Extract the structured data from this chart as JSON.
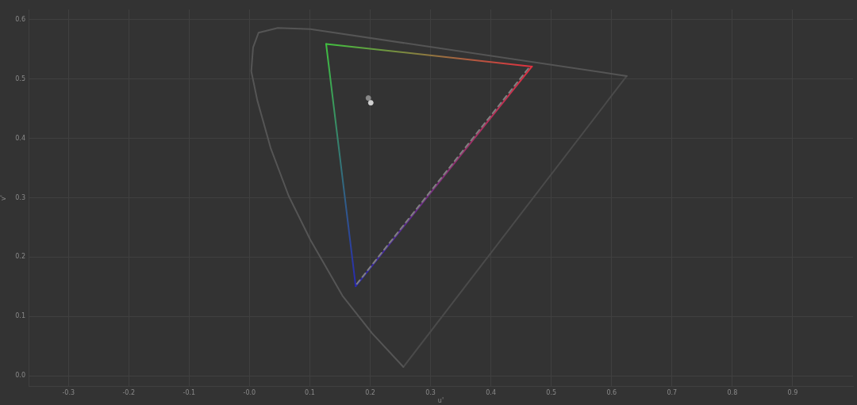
{
  "chart_data": {
    "type": "line",
    "xlabel": "u'",
    "ylabel": "v'",
    "xlim": [
      -0.366,
      1.0
    ],
    "ylim": [
      -0.017,
      0.617
    ],
    "xticks": [
      -0.3,
      -0.2,
      -0.1,
      {
        "value": 0,
        "label": "-0.0"
      },
      0.1,
      0.2,
      0.3,
      0.4,
      0.5,
      0.6,
      0.7,
      0.8,
      0.9
    ],
    "yticks": [
      {
        "value": 0,
        "label": "0.0"
      },
      0.1,
      0.2,
      0.3,
      0.4,
      0.5,
      0.6
    ],
    "grid": true,
    "legend": false,
    "series": [
      {
        "type": "line",
        "color": "#555555",
        "x": [
          0.255,
          0.203,
          0.154,
          0.101,
          0.065,
          0.035,
          0.013,
          0.003,
          0.006,
          0.015,
          0.047,
          0.101,
          0.625
        ],
        "values": [
          0.015,
          0.072,
          0.135,
          0.229,
          0.303,
          0.384,
          0.464,
          0.513,
          0.553,
          0.578,
          0.586,
          0.584,
          0.505
        ]
      },
      {
        "type": "line",
        "color": "#4a4a4a",
        "x": [
          0.255,
          0.625
        ],
        "values": [
          0.015,
          0.505
        ]
      },
      {
        "type": "line",
        "line_style": "dashed",
        "color": "#808080",
        "x": [
          0.178,
          0.463
        ],
        "values": [
          0.155,
          0.519
        ]
      },
      {
        "type": "line",
        "colors": [
          "#40c040",
          "#e03040"
        ],
        "x": [
          0.127,
          0.468
        ],
        "values": [
          0.559,
          0.521
        ]
      },
      {
        "type": "line",
        "colors": [
          "#2828b0",
          "#e03040"
        ],
        "x": [
          0.176,
          0.468
        ],
        "values": [
          0.151,
          0.521
        ]
      },
      {
        "type": "line",
        "colors": [
          "#40c040",
          "#2828b0"
        ],
        "x": [
          0.127,
          0.176
        ],
        "values": [
          0.559,
          0.151
        ]
      },
      {
        "type": "scatter",
        "marker": "circle",
        "colors": [
          "#888888",
          "#d0d0d0"
        ],
        "x": [
          0.197,
          0.201
        ],
        "values": [
          0.468,
          0.46
        ]
      }
    ]
  }
}
